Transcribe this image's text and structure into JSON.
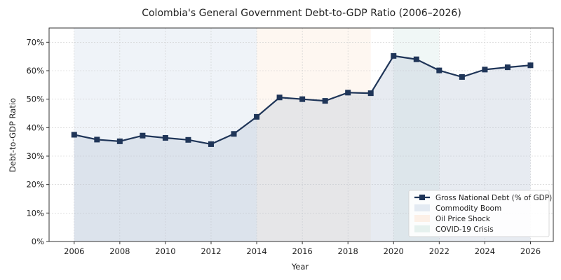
{
  "chart_data": {
    "type": "line",
    "title": "Colombia's General Government Debt-to-GDP Ratio (2006–2026)",
    "xlabel": "Year",
    "ylabel": "Debt-to-GDP Ratio",
    "xlim": [
      2004.9,
      2027.0
    ],
    "ylim": [
      0,
      75
    ],
    "x_ticks": [
      2006,
      2008,
      2010,
      2012,
      2014,
      2016,
      2018,
      2020,
      2022,
      2024,
      2026
    ],
    "y_ticks": [
      0,
      10,
      20,
      30,
      40,
      50,
      60,
      70
    ],
    "y_tick_labels": [
      "0%",
      "10%",
      "20%",
      "30%",
      "40%",
      "50%",
      "60%",
      "70%"
    ],
    "grid": true,
    "legend_position": "bottom-right",
    "series": [
      {
        "name": "Gross National Debt (% of GDP)",
        "color": "#1f3558",
        "marker": "square",
        "x": [
          2006,
          2007,
          2008,
          2009,
          2010,
          2011,
          2012,
          2013,
          2014,
          2015,
          2016,
          2017,
          2018,
          2019,
          2020,
          2021,
          2022,
          2023,
          2024,
          2025,
          2026
        ],
        "values": [
          37.5,
          35.8,
          35.2,
          37.2,
          36.4,
          35.7,
          34.2,
          37.8,
          43.8,
          50.6,
          50.0,
          49.4,
          52.3,
          52.1,
          65.2,
          64.0,
          60.1,
          57.8,
          60.4,
          61.2,
          61.9
        ]
      }
    ],
    "shaded_regions": [
      {
        "name": "Commodity Boom",
        "x_start": 2006,
        "x_end": 2014,
        "color": "#c9d7e8"
      },
      {
        "name": "Oil Price Shock",
        "x_start": 2014,
        "x_end": 2019,
        "color": "#fbe3d2"
      },
      {
        "name": "COVID-19 Crisis",
        "x_start": 2020,
        "x_end": 2022,
        "color": "#cde6e0"
      }
    ],
    "area_fill_color": "#b9c6d6"
  }
}
